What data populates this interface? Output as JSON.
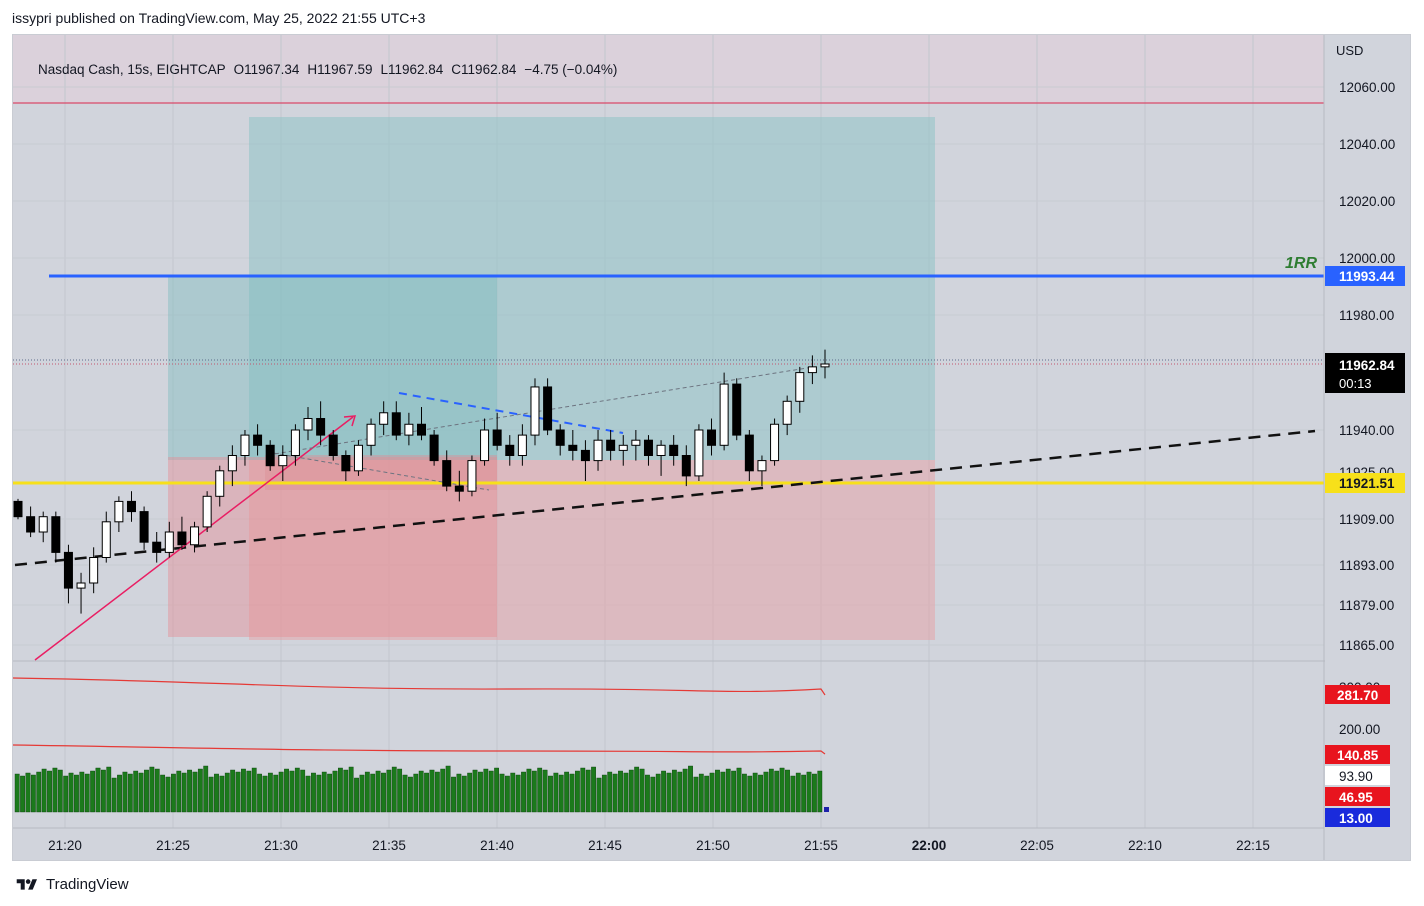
{
  "header": {
    "published_text": "issypri published on TradingView.com, May 25, 2022 21:55 UTC+3"
  },
  "symbol": {
    "name": "Nasdaq Cash, 15s, EIGHTCAP",
    "open": "O11967.34",
    "high": "H11967.59",
    "low": "L11962.84",
    "close": "C11962.84",
    "change": "−4.75 (−0.04%)"
  },
  "price_axis": {
    "currency": "USD",
    "ticks": [
      "12060.00",
      "12040.00",
      "12020.00",
      "12000.00",
      "11980.00",
      "11940.00",
      "11909.00",
      "11893.00",
      "11879.00",
      "11865.00"
    ],
    "partial_ticks": [
      "11925.00",
      "300.00"
    ],
    "lower_ticks": [
      "200.00"
    ]
  },
  "price_labels": {
    "blue_line": "11993.44",
    "last_price": "11962.84",
    "countdown": "00:13",
    "yellow_line": "11921.51"
  },
  "indicator_labels": {
    "red_upper": "281.70",
    "red_lower": "140.85",
    "white": "93.90",
    "red_small": "46.95",
    "blue_small": "13.00"
  },
  "annotation": {
    "rr_label": "1RR"
  },
  "time_axis": {
    "labels": [
      "21:20",
      "21:25",
      "21:30",
      "21:35",
      "21:40",
      "21:45",
      "21:50",
      "21:55",
      "22:00",
      "22:05",
      "22:10",
      "22:15"
    ],
    "bold_label": "22:00"
  },
  "colors": {
    "bg": "#d1d4dc",
    "target_zone": "#9fc8cc",
    "stop_zone": "#e2a6ab",
    "blue_line": "#2962ff",
    "yellow_line": "#f7e01a",
    "trend_pink": "#e91e63",
    "volume_green": "#1b7a1b",
    "indicator_red": "#e53935"
  },
  "chart_data": {
    "type": "candlestick",
    "title": "",
    "x_range": [
      "21:17",
      "22:18"
    ],
    "y_range": [
      11860,
      12066
    ],
    "candles_ohlc_approx": [
      [
        11912,
        11913,
        11905,
        11906
      ],
      [
        11906,
        11910,
        11898,
        11900
      ],
      [
        11900,
        11908,
        11896,
        11906
      ],
      [
        11906,
        11908,
        11888,
        11892
      ],
      [
        11892,
        11895,
        11872,
        11878
      ],
      [
        11878,
        11884,
        11868,
        11880
      ],
      [
        11880,
        11894,
        11876,
        11890
      ],
      [
        11890,
        11908,
        11888,
        11904
      ],
      [
        11904,
        11914,
        11900,
        11912
      ],
      [
        11912,
        11916,
        11904,
        11908
      ],
      [
        11908,
        11910,
        11893,
        11896
      ],
      [
        11896,
        11900,
        11888,
        11892
      ],
      [
        11892,
        11904,
        11890,
        11900
      ],
      [
        11900,
        11906,
        11893,
        11895
      ],
      [
        11895,
        11904,
        11892,
        11902
      ],
      [
        11902,
        11916,
        11900,
        11914
      ],
      [
        11914,
        11926,
        11910,
        11924
      ],
      [
        11924,
        11934,
        11918,
        11930
      ],
      [
        11930,
        11940,
        11926,
        11938
      ],
      [
        11938,
        11942,
        11930,
        11934
      ],
      [
        11934,
        11936,
        11924,
        11926
      ],
      [
        11926,
        11934,
        11920,
        11930
      ],
      [
        11930,
        11942,
        11926,
        11940
      ],
      [
        11940,
        11948,
        11936,
        11944
      ],
      [
        11944,
        11950,
        11934,
        11938
      ],
      [
        11938,
        11940,
        11928,
        11930
      ],
      [
        11930,
        11932,
        11920,
        11924
      ],
      [
        11924,
        11936,
        11922,
        11934
      ],
      [
        11934,
        11944,
        11930,
        11942
      ],
      [
        11942,
        11950,
        11938,
        11946
      ],
      [
        11946,
        11950,
        11936,
        11938
      ],
      [
        11938,
        11946,
        11934,
        11942
      ],
      [
        11942,
        11948,
        11936,
        11938
      ],
      [
        11938,
        11940,
        11926,
        11928
      ],
      [
        11928,
        11932,
        11916,
        11918
      ],
      [
        11918,
        11924,
        11912,
        11916
      ],
      [
        11916,
        11930,
        11914,
        11928
      ],
      [
        11928,
        11944,
        11926,
        11940
      ],
      [
        11940,
        11946,
        11932,
        11934
      ],
      [
        11934,
        11938,
        11926,
        11930
      ],
      [
        11930,
        11942,
        11926,
        11938
      ],
      [
        11938,
        11958,
        11934,
        11955
      ],
      [
        11955,
        11958,
        11938,
        11940
      ],
      [
        11940,
        11942,
        11930,
        11934
      ],
      [
        11934,
        11940,
        11928,
        11932
      ],
      [
        11932,
        11936,
        11920,
        11928
      ],
      [
        11928,
        11940,
        11924,
        11936
      ],
      [
        11936,
        11940,
        11928,
        11932
      ],
      [
        11932,
        11938,
        11926,
        11934
      ],
      [
        11934,
        11940,
        11928,
        11936
      ],
      [
        11936,
        11938,
        11926,
        11930
      ],
      [
        11930,
        11936,
        11922,
        11934
      ],
      [
        11934,
        11938,
        11926,
        11930
      ],
      [
        11930,
        11934,
        11918,
        11922
      ],
      [
        11922,
        11942,
        11920,
        11940
      ],
      [
        11940,
        11944,
        11930,
        11934
      ],
      [
        11934,
        11960,
        11932,
        11956
      ],
      [
        11956,
        11958,
        11936,
        11938
      ],
      [
        11938,
        11940,
        11920,
        11924
      ],
      [
        11924,
        11930,
        11918,
        11928
      ],
      [
        11928,
        11944,
        11926,
        11942
      ],
      [
        11942,
        11952,
        11938,
        11950
      ],
      [
        11950,
        11962,
        11946,
        11960
      ],
      [
        11960,
        11966,
        11956,
        11962
      ],
      [
        11962,
        11968,
        11958,
        11963
      ]
    ],
    "horizontal_lines": [
      {
        "price": 12054,
        "color": "red"
      },
      {
        "price": 11993.44,
        "color": "blue"
      },
      {
        "price": 11921.51,
        "color": "yellow"
      },
      {
        "price": 11962.84,
        "style": "dotted"
      }
    ]
  }
}
